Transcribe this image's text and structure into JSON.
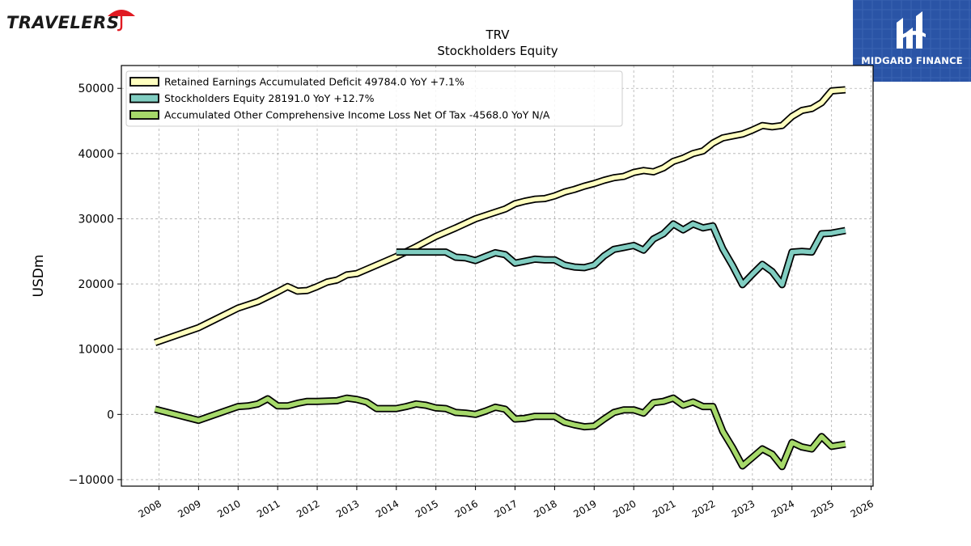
{
  "brand": {
    "name": "TRAVELERS"
  },
  "badge": {
    "text": "MIDGARD FINANCE"
  },
  "chart_data": {
    "type": "line",
    "title": "TRV",
    "subtitle": "Stockholders  Equity",
    "xlabel": "",
    "ylabel": "USDm",
    "xlim": [
      2007.05,
      2026.05
    ],
    "ylim": [
      -11000,
      53500
    ],
    "yticks": [
      -10000,
      0,
      10000,
      20000,
      30000,
      40000,
      50000
    ],
    "ytick_labels": [
      "−10000",
      "0",
      "10000",
      "20000",
      "30000",
      "40000",
      "50000"
    ],
    "xticks": [
      2008,
      2009,
      2010,
      2011,
      2012,
      2013,
      2014,
      2015,
      2016,
      2017,
      2018,
      2019,
      2020,
      2021,
      2022,
      2023,
      2024,
      2025,
      2026
    ],
    "xtick_labels": [
      "2008",
      "2009",
      "2010",
      "2011",
      "2012",
      "2013",
      "2014",
      "2015",
      "2016",
      "2017",
      "2018",
      "2019",
      "2020",
      "2021",
      "2022",
      "2023",
      "2024",
      "2025",
      "2026"
    ],
    "grid": true,
    "legend_position": "top-left",
    "series": [
      {
        "name": "Retained Earnings Accumulated Deficit  49784.0 YoY +7.1%",
        "color": "#ffffbf",
        "points": [
          [
            2007.9,
            11000
          ],
          [
            2009.0,
            13300
          ],
          [
            2010.0,
            16300
          ],
          [
            2010.5,
            17300
          ],
          [
            2011.0,
            18800
          ],
          [
            2011.25,
            19600
          ],
          [
            2011.5,
            18900
          ],
          [
            2011.75,
            19000
          ],
          [
            2012.0,
            19600
          ],
          [
            2012.25,
            20300
          ],
          [
            2012.5,
            20600
          ],
          [
            2012.75,
            21400
          ],
          [
            2013.0,
            21600
          ],
          [
            2013.5,
            22900
          ],
          [
            2014.0,
            24200
          ],
          [
            2014.5,
            25700
          ],
          [
            2015.0,
            27300
          ],
          [
            2015.5,
            28600
          ],
          [
            2016.0,
            30000
          ],
          [
            2016.5,
            31000
          ],
          [
            2016.75,
            31500
          ],
          [
            2017.0,
            32300
          ],
          [
            2017.25,
            32700
          ],
          [
            2017.5,
            33000
          ],
          [
            2017.75,
            33100
          ],
          [
            2018.0,
            33500
          ],
          [
            2018.25,
            34100
          ],
          [
            2018.5,
            34500
          ],
          [
            2018.75,
            35000
          ],
          [
            2019.0,
            35400
          ],
          [
            2019.25,
            35900
          ],
          [
            2019.5,
            36300
          ],
          [
            2019.75,
            36500
          ],
          [
            2020.0,
            37100
          ],
          [
            2020.25,
            37400
          ],
          [
            2020.5,
            37200
          ],
          [
            2020.75,
            37800
          ],
          [
            2021.0,
            38800
          ],
          [
            2021.25,
            39300
          ],
          [
            2021.5,
            40000
          ],
          [
            2021.75,
            40400
          ],
          [
            2022.0,
            41600
          ],
          [
            2022.25,
            42400
          ],
          [
            2022.5,
            42700
          ],
          [
            2022.75,
            43000
          ],
          [
            2023.0,
            43600
          ],
          [
            2023.25,
            44300
          ],
          [
            2023.5,
            44100
          ],
          [
            2023.75,
            44300
          ],
          [
            2024.0,
            45700
          ],
          [
            2024.25,
            46600
          ],
          [
            2024.5,
            46900
          ],
          [
            2024.75,
            47800
          ],
          [
            2025.0,
            49600
          ],
          [
            2025.35,
            49784
          ]
        ]
      },
      {
        "name": "Stockholders Equity  28191.0 YoY +12.7%",
        "color": "#80cdc1",
        "points": [
          [
            2014.0,
            24900
          ],
          [
            2014.5,
            24900
          ],
          [
            2015.0,
            24900
          ],
          [
            2015.25,
            24900
          ],
          [
            2015.5,
            24100
          ],
          [
            2015.75,
            24000
          ],
          [
            2016.0,
            23600
          ],
          [
            2016.25,
            24200
          ],
          [
            2016.5,
            24800
          ],
          [
            2016.75,
            24500
          ],
          [
            2017.0,
            23200
          ],
          [
            2017.25,
            23500
          ],
          [
            2017.5,
            23800
          ],
          [
            2017.75,
            23700
          ],
          [
            2018.0,
            23700
          ],
          [
            2018.25,
            22900
          ],
          [
            2018.5,
            22600
          ],
          [
            2018.75,
            22500
          ],
          [
            2019.0,
            22900
          ],
          [
            2019.25,
            24300
          ],
          [
            2019.5,
            25300
          ],
          [
            2019.75,
            25600
          ],
          [
            2020.0,
            25900
          ],
          [
            2020.25,
            25200
          ],
          [
            2020.5,
            26900
          ],
          [
            2020.75,
            27700
          ],
          [
            2021.0,
            29200
          ],
          [
            2021.25,
            28300
          ],
          [
            2021.5,
            29200
          ],
          [
            2021.75,
            28600
          ],
          [
            2022.0,
            28900
          ],
          [
            2022.25,
            25400
          ],
          [
            2022.5,
            22800
          ],
          [
            2022.75,
            19900
          ],
          [
            2023.0,
            21500
          ],
          [
            2023.25,
            23000
          ],
          [
            2023.5,
            21900
          ],
          [
            2023.75,
            19900
          ],
          [
            2024.0,
            24900
          ],
          [
            2024.25,
            25000
          ],
          [
            2024.5,
            24900
          ],
          [
            2024.75,
            27700
          ],
          [
            2025.0,
            27800
          ],
          [
            2025.35,
            28191
          ]
        ]
      },
      {
        "name": "Accumulated Other Comprehensive Income Loss Net Of Tax  -4568.0 YoY N/A",
        "color": "#a6d96a",
        "points": [
          [
            2007.9,
            800
          ],
          [
            2009.0,
            -900
          ],
          [
            2010.0,
            1200
          ],
          [
            2010.25,
            1300
          ],
          [
            2010.5,
            1600
          ],
          [
            2010.75,
            2400
          ],
          [
            2011.0,
            1300
          ],
          [
            2011.25,
            1300
          ],
          [
            2011.5,
            1700
          ],
          [
            2011.75,
            2000
          ],
          [
            2012.0,
            2000
          ],
          [
            2012.5,
            2100
          ],
          [
            2012.75,
            2500
          ],
          [
            2013.0,
            2300
          ],
          [
            2013.25,
            1900
          ],
          [
            2013.5,
            900
          ],
          [
            2014.0,
            900
          ],
          [
            2014.25,
            1200
          ],
          [
            2014.5,
            1600
          ],
          [
            2014.75,
            1400
          ],
          [
            2015.0,
            1000
          ],
          [
            2015.25,
            900
          ],
          [
            2015.5,
            300
          ],
          [
            2015.75,
            200
          ],
          [
            2016.0,
            0
          ],
          [
            2016.25,
            500
          ],
          [
            2016.5,
            1100
          ],
          [
            2016.75,
            800
          ],
          [
            2017.0,
            -700
          ],
          [
            2017.25,
            -600
          ],
          [
            2017.5,
            -300
          ],
          [
            2017.75,
            -300
          ],
          [
            2018.0,
            -300
          ],
          [
            2018.25,
            -1200
          ],
          [
            2018.5,
            -1600
          ],
          [
            2018.75,
            -1900
          ],
          [
            2019.0,
            -1800
          ],
          [
            2019.25,
            -700
          ],
          [
            2019.5,
            300
          ],
          [
            2019.75,
            700
          ],
          [
            2020.0,
            700
          ],
          [
            2020.25,
            200
          ],
          [
            2020.5,
            1800
          ],
          [
            2020.75,
            2000
          ],
          [
            2021.0,
            2500
          ],
          [
            2021.25,
            1400
          ],
          [
            2021.5,
            1900
          ],
          [
            2021.75,
            1200
          ],
          [
            2022.0,
            1200
          ],
          [
            2022.25,
            -2600
          ],
          [
            2022.5,
            -5100
          ],
          [
            2022.75,
            -7900
          ],
          [
            2023.0,
            -6600
          ],
          [
            2023.25,
            -5300
          ],
          [
            2023.5,
            -6100
          ],
          [
            2023.75,
            -8000
          ],
          [
            2024.0,
            -4300
          ],
          [
            2024.25,
            -5000
          ],
          [
            2024.5,
            -5300
          ],
          [
            2024.75,
            -3400
          ],
          [
            2025.0,
            -4900
          ],
          [
            2025.35,
            -4568
          ]
        ]
      }
    ]
  }
}
